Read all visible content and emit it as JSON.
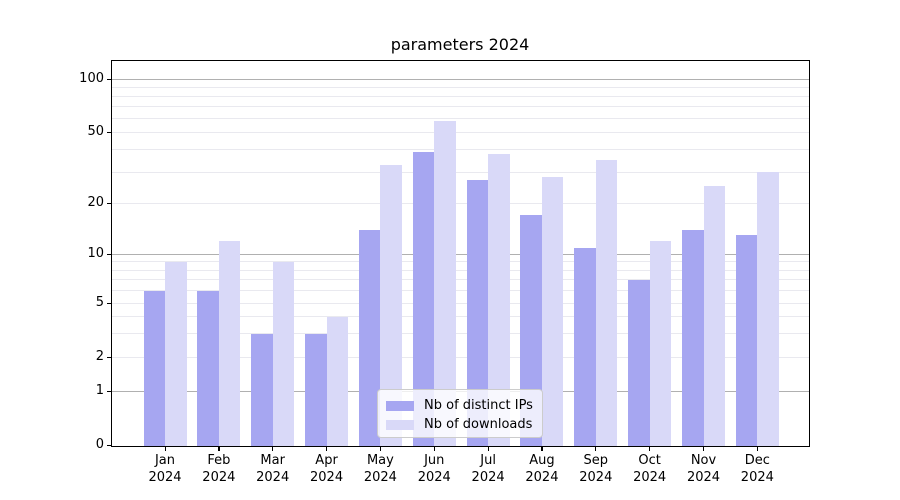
{
  "title": "parameters 2024",
  "chart_data": {
    "type": "bar",
    "title": "parameters 2024",
    "categories": [
      "Jan 2024",
      "Feb 2024",
      "Mar 2024",
      "Apr 2024",
      "May 2024",
      "Jun 2024",
      "Jul 2024",
      "Aug 2024",
      "Sep 2024",
      "Oct 2024",
      "Nov 2024",
      "Dec 2024"
    ],
    "series": [
      {
        "name": "Nb of distinct IPs",
        "color": "#a6a6f1",
        "values": [
          6,
          6,
          3,
          3,
          14,
          39,
          27,
          17,
          11,
          7,
          14,
          13
        ]
      },
      {
        "name": "Nb of downloads",
        "color": "#d9d9f8",
        "values": [
          9,
          12,
          9,
          4,
          33,
          58,
          38,
          28,
          35,
          12,
          25,
          30
        ]
      }
    ],
    "xlabel": "",
    "ylabel": "",
    "yscale": "symlog",
    "yticks": [
      0,
      1,
      2,
      5,
      10,
      20,
      50,
      100
    ],
    "ylim": [
      0,
      127
    ],
    "grid": true,
    "legend_position": "lower center",
    "colors": {
      "major_grid": "#b0b0b0",
      "minor_grid": "#e9e9ef",
      "axis": "#000000",
      "background": "#ffffff"
    }
  }
}
